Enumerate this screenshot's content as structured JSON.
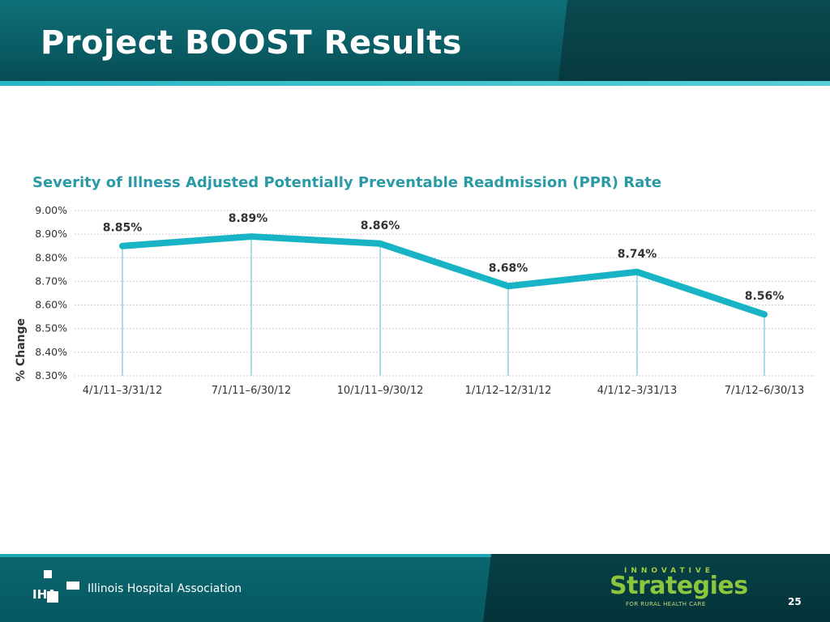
{
  "slide": {
    "title": "Project BOOST Results",
    "page_number": "25"
  },
  "footer": {
    "organization": "Illinois Hospital Association",
    "logo_text": "IHA",
    "brand": {
      "top": "INNOVATIVE",
      "main": "Strategies",
      "sub": "FOR RURAL HEALTH CARE"
    }
  },
  "colors": {
    "line": "#18b3c4",
    "drop_line": "#a8dde6",
    "title_accent": "#2a9aa6",
    "header_teal": "#0a5b63"
  },
  "chart_data": {
    "type": "line",
    "title": "Severity of Illness Adjusted Potentially Preventable Readmission (PPR) Rate",
    "ylabel": "% Change",
    "xlabel": "",
    "categories": [
      "4/1/11–3/31/12",
      "7/1/11–6/30/12",
      "10/1/11–9/30/12",
      "1/1/12–12/31/12",
      "4/1/12–3/31/13",
      "7/1/12–6/30/13"
    ],
    "values": [
      8.85,
      8.89,
      8.86,
      8.68,
      8.74,
      8.56
    ],
    "value_labels": [
      "8.85%",
      "8.89%",
      "8.86%",
      "8.68%",
      "8.74%",
      "8.56%"
    ],
    "ylim": [
      8.3,
      9.0
    ],
    "yticks": [
      9.0,
      8.9,
      8.8,
      8.7,
      8.6,
      8.5,
      8.4,
      8.3
    ],
    "ytick_labels": [
      "9.00%",
      "8.90%",
      "8.80%",
      "8.70%",
      "8.60%",
      "8.50%",
      "8.40%",
      "8.30%"
    ],
    "grid": true,
    "legend": "none"
  }
}
